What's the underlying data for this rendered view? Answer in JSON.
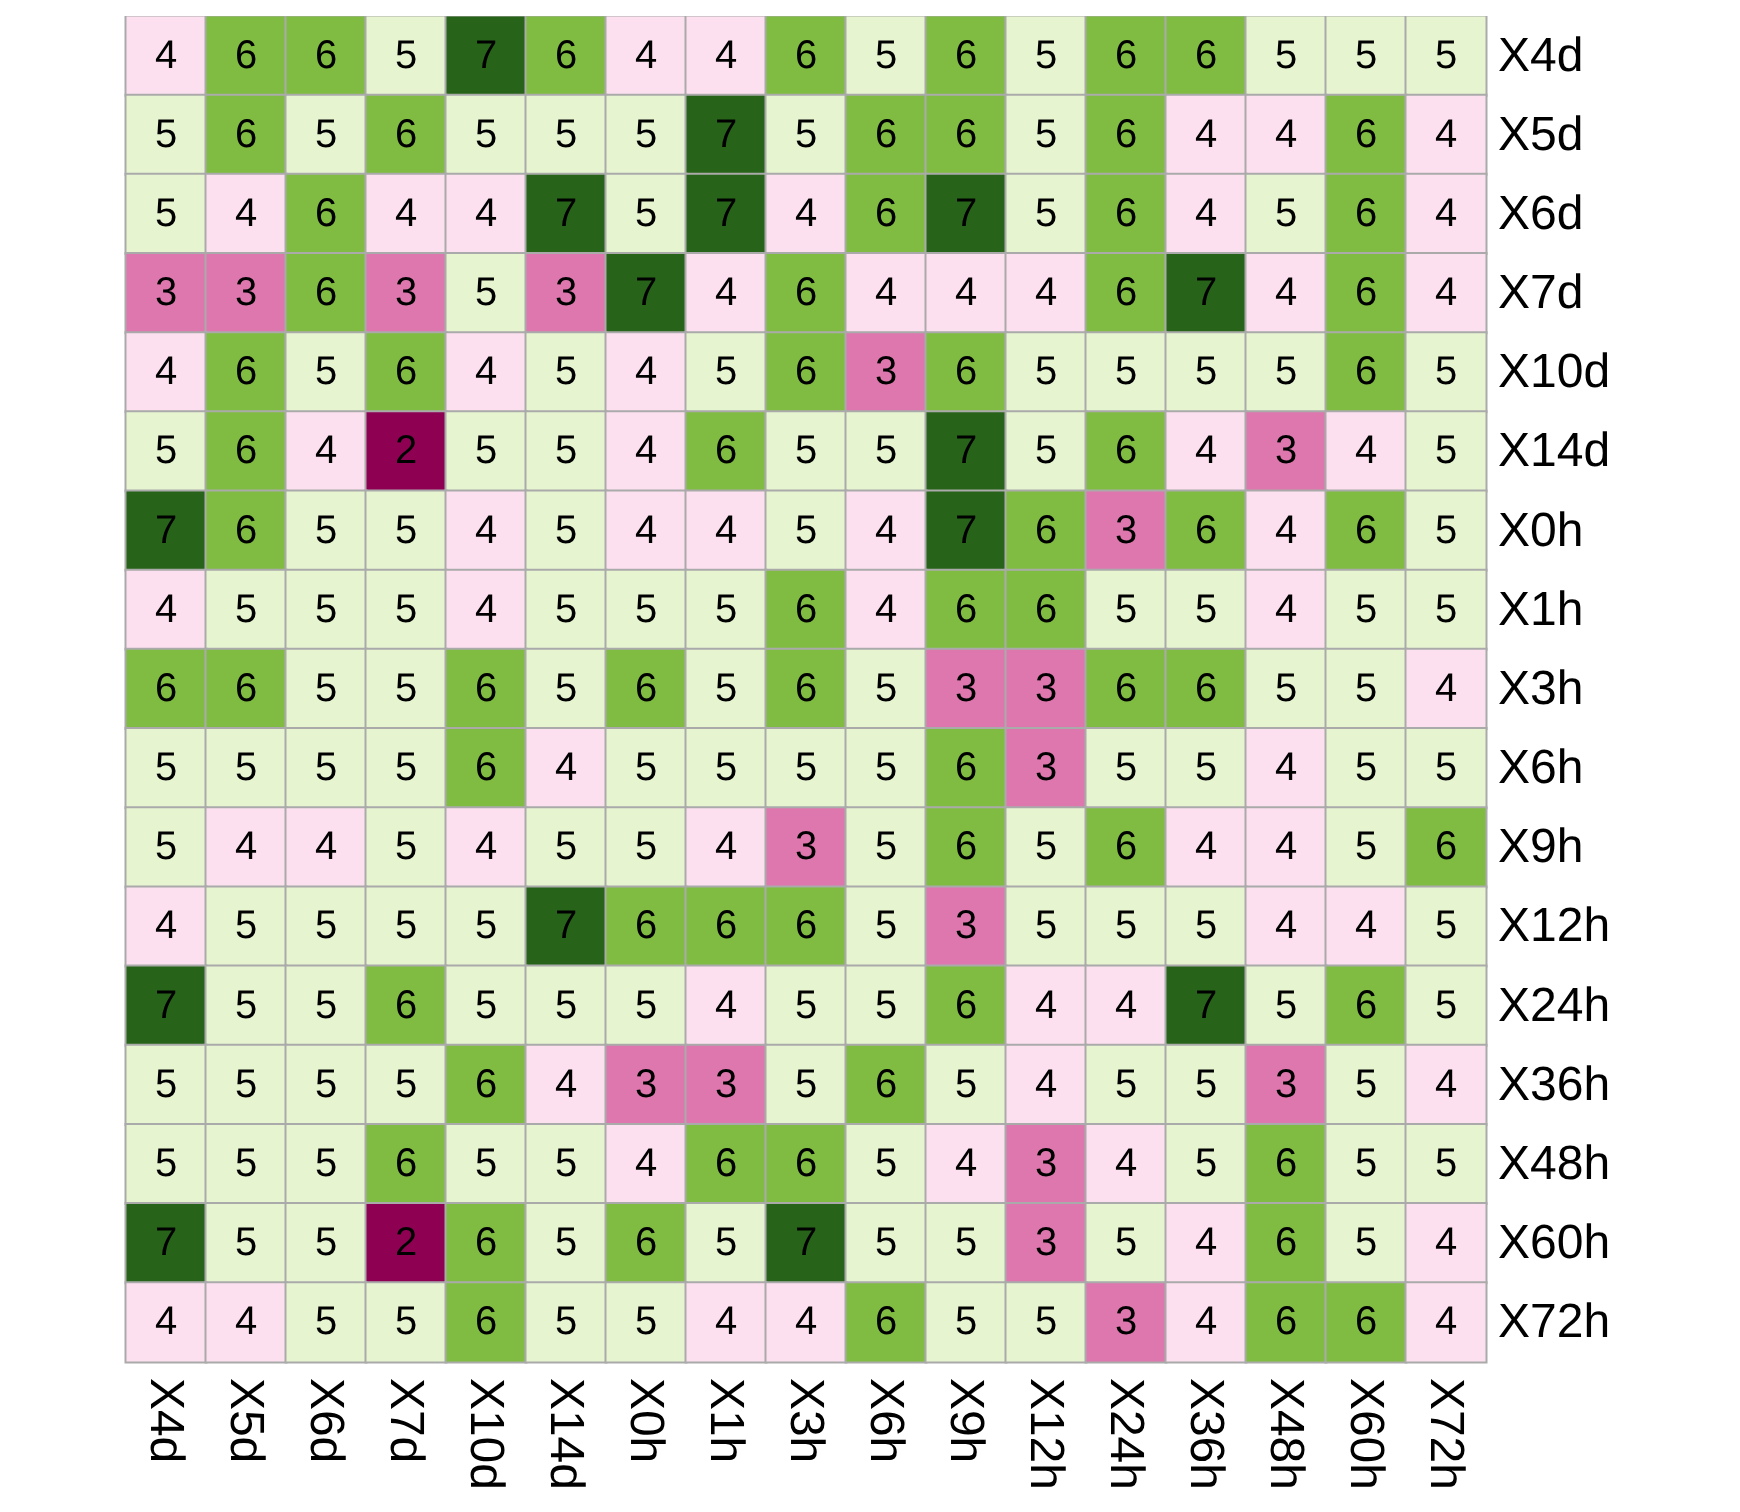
{
  "chart_data": {
    "type": "heatmap",
    "categories": [
      "X4d",
      "X5d",
      "X6d",
      "X7d",
      "X10d",
      "X14d",
      "X0h",
      "X1h",
      "X3h",
      "X6h",
      "X9h",
      "X12h",
      "X24h",
      "X36h",
      "X48h",
      "X60h",
      "X72h"
    ],
    "y_categories": [
      "X4d",
      "X5d",
      "X6d",
      "X7d",
      "X10d",
      "X14d",
      "X0h",
      "X1h",
      "X3h",
      "X6h",
      "X9h",
      "X12h",
      "X24h",
      "X36h",
      "X48h",
      "X60h",
      "X72h"
    ],
    "cells": [
      [
        4,
        6,
        6,
        5,
        7,
        6,
        4,
        4,
        6,
        5,
        6,
        5,
        6,
        6,
        5,
        5,
        5
      ],
      [
        5,
        6,
        5,
        6,
        5,
        5,
        5,
        7,
        5,
        6,
        6,
        5,
        6,
        4,
        4,
        6,
        4
      ],
      [
        5,
        4,
        6,
        4,
        4,
        7,
        5,
        7,
        4,
        6,
        7,
        5,
        6,
        4,
        5,
        6,
        4
      ],
      [
        3,
        3,
        6,
        3,
        5,
        3,
        7,
        4,
        6,
        4,
        4,
        4,
        6,
        7,
        4,
        6,
        4
      ],
      [
        4,
        6,
        5,
        6,
        4,
        5,
        4,
        5,
        6,
        3,
        6,
        5,
        5,
        5,
        5,
        6,
        5
      ],
      [
        5,
        6,
        4,
        2,
        5,
        5,
        4,
        6,
        5,
        5,
        7,
        5,
        6,
        4,
        3,
        4,
        5
      ],
      [
        7,
        6,
        5,
        5,
        4,
        5,
        4,
        4,
        5,
        4,
        7,
        6,
        3,
        6,
        4,
        6,
        5
      ],
      [
        4,
        5,
        5,
        5,
        4,
        5,
        5,
        5,
        6,
        4,
        6,
        6,
        5,
        5,
        4,
        5,
        5
      ],
      [
        6,
        6,
        5,
        5,
        6,
        5,
        6,
        5,
        6,
        5,
        3,
        3,
        6,
        6,
        5,
        5,
        4
      ],
      [
        5,
        5,
        5,
        5,
        6,
        4,
        5,
        5,
        5,
        5,
        6,
        3,
        5,
        5,
        4,
        5,
        5
      ],
      [
        5,
        4,
        4,
        5,
        4,
        5,
        5,
        4,
        3,
        5,
        6,
        5,
        6,
        4,
        4,
        5,
        6
      ],
      [
        4,
        5,
        5,
        5,
        5,
        7,
        6,
        6,
        6,
        5,
        3,
        5,
        5,
        5,
        4,
        4,
        5
      ],
      [
        7,
        5,
        5,
        6,
        5,
        5,
        5,
        4,
        5,
        5,
        6,
        4,
        4,
        7,
        5,
        6,
        5
      ],
      [
        5,
        5,
        5,
        5,
        6,
        4,
        3,
        3,
        5,
        6,
        5,
        4,
        5,
        5,
        3,
        5,
        4
      ],
      [
        5,
        5,
        5,
        6,
        5,
        5,
        4,
        6,
        6,
        5,
        4,
        3,
        4,
        5,
        6,
        5,
        5
      ],
      [
        7,
        5,
        5,
        2,
        6,
        5,
        6,
        5,
        7,
        5,
        5,
        3,
        5,
        4,
        6,
        5,
        4
      ],
      [
        4,
        4,
        5,
        5,
        6,
        5,
        5,
        4,
        4,
        6,
        5,
        5,
        3,
        4,
        6,
        6,
        4
      ]
    ],
    "data_labels": true
  }
}
